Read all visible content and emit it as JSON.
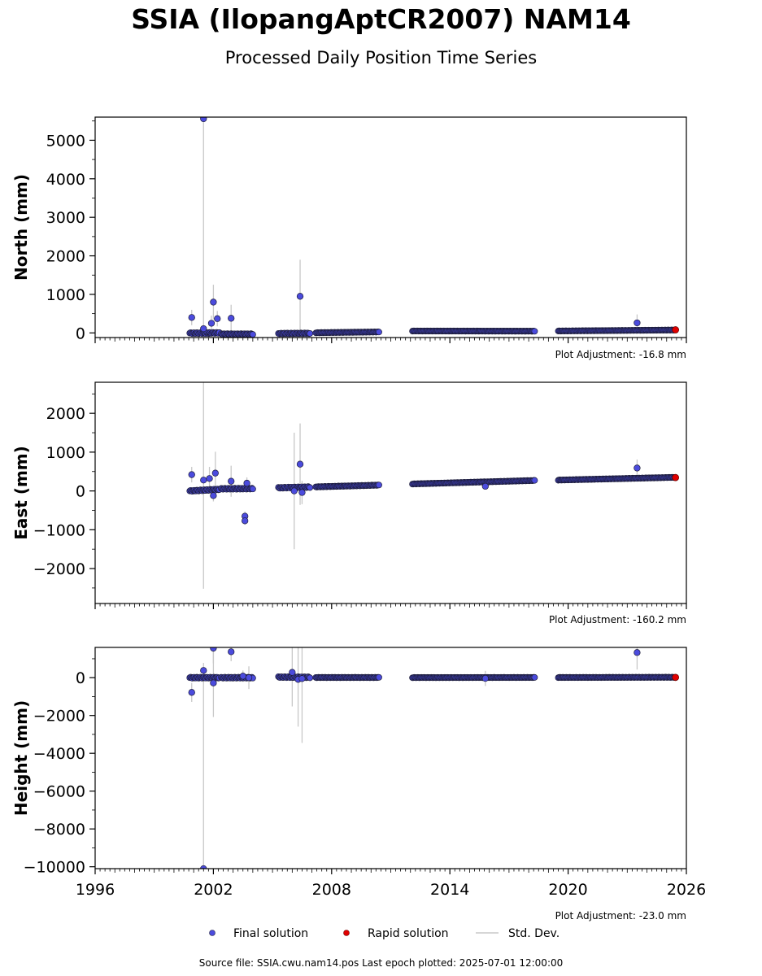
{
  "figure": {
    "title": "SSIA (IlopangAptCR2007) NAM14",
    "subtitle": "Processed Daily Position Time Series",
    "footer": "Source file: SSIA.cwu.nam14.pos  Last epoch plotted: 2025-07-01 12:00:00"
  },
  "legend": {
    "final_label": "Final solution",
    "rapid_label": "Rapid solution",
    "stddev_label": "Std. Dev."
  },
  "colors": {
    "final": "#4b4bdd",
    "final_edge": "#1e1e3c",
    "rapid": "#e00000",
    "stddev": "#c8c8c8"
  },
  "chart_data": [
    {
      "type": "scatter",
      "ylabel": "North (mm)",
      "xlim": [
        1996,
        2026
      ],
      "ylim": [
        -120,
        5600
      ],
      "yticks": [
        0,
        1000,
        2000,
        3000,
        4000,
        5000
      ],
      "xticks": [
        1996,
        2002,
        2008,
        2014,
        2020,
        2026
      ],
      "show_xtick_labels": false,
      "adjustment": "Plot Adjustment: -16.8 mm",
      "segments": [
        {
          "x0": 2000.8,
          "x1": 2001.8,
          "y0": -5,
          "y1": -5,
          "err": 40
        },
        {
          "x0": 2001.8,
          "x1": 2002.3,
          "y0": 0,
          "y1": 0,
          "err": 40
        },
        {
          "x0": 2002.4,
          "x1": 2004.0,
          "y0": -30,
          "y1": -30,
          "err": 30
        },
        {
          "x0": 2005.3,
          "x1": 2006.9,
          "y0": -15,
          "y1": -10,
          "err": 30
        },
        {
          "x0": 2007.2,
          "x1": 2010.4,
          "y0": 5,
          "y1": 25,
          "err": 15
        },
        {
          "x0": 2012.1,
          "x1": 2018.3,
          "y0": 50,
          "y1": 45,
          "err": 12
        },
        {
          "x0": 2019.5,
          "x1": 2025.4,
          "y0": 50,
          "y1": 75,
          "err": 12
        }
      ],
      "outliers": [
        {
          "x": 2000.9,
          "y": 400,
          "err": 200
        },
        {
          "x": 2001.5,
          "y": 5560,
          "err": 5560
        },
        {
          "x": 2001.5,
          "y": 110,
          "err": 100
        },
        {
          "x": 2001.9,
          "y": 250,
          "err": 200
        },
        {
          "x": 2002.0,
          "y": 800,
          "err": 450
        },
        {
          "x": 2002.2,
          "y": 370,
          "err": 200
        },
        {
          "x": 2002.9,
          "y": 380,
          "err": 350
        },
        {
          "x": 2006.4,
          "y": 950,
          "err": 950
        },
        {
          "x": 2023.5,
          "y": 260,
          "err": 220
        }
      ],
      "rapid": [
        {
          "x": 2025.45,
          "y": 80
        }
      ]
    },
    {
      "type": "scatter",
      "ylabel": "East (mm)",
      "xlim": [
        1996,
        2026
      ],
      "ylim": [
        -2900,
        2800
      ],
      "yticks": [
        -2000,
        -1000,
        0,
        1000,
        2000
      ],
      "xticks": [
        1996,
        2002,
        2008,
        2014,
        2020,
        2026
      ],
      "show_xtick_labels": false,
      "adjustment": "Plot Adjustment: -160.2 mm",
      "segments": [
        {
          "x0": 2000.8,
          "x1": 2002.3,
          "y0": 0,
          "y1": 40,
          "err": 40
        },
        {
          "x0": 2002.4,
          "x1": 2004.0,
          "y0": 55,
          "y1": 60,
          "err": 40
        },
        {
          "x0": 2005.3,
          "x1": 2006.9,
          "y0": 80,
          "y1": 100,
          "err": 40
        },
        {
          "x0": 2007.2,
          "x1": 2010.4,
          "y0": 105,
          "y1": 150,
          "err": 20
        },
        {
          "x0": 2012.1,
          "x1": 2018.3,
          "y0": 180,
          "y1": 270,
          "err": 15
        },
        {
          "x0": 2019.5,
          "x1": 2025.4,
          "y0": 280,
          "y1": 350,
          "err": 15
        }
      ],
      "outliers": [
        {
          "x": 2000.9,
          "y": 420,
          "err": 200
        },
        {
          "x": 2001.5,
          "y": 280,
          "err": 2800
        },
        {
          "x": 2001.8,
          "y": 320,
          "err": 300
        },
        {
          "x": 2002.1,
          "y": 460,
          "err": 550
        },
        {
          "x": 2002.0,
          "y": -120,
          "err": 150
        },
        {
          "x": 2002.9,
          "y": 250,
          "err": 400
        },
        {
          "x": 2003.6,
          "y": -650,
          "err": 120
        },
        {
          "x": 2003.6,
          "y": -770,
          "err": 100
        },
        {
          "x": 2003.7,
          "y": 200,
          "err": 150
        },
        {
          "x": 2006.4,
          "y": 690,
          "err": 1050
        },
        {
          "x": 2006.1,
          "y": 0,
          "err": 1500
        },
        {
          "x": 2006.5,
          "y": -40,
          "err": 300
        },
        {
          "x": 2015.8,
          "y": 120,
          "err": 80
        },
        {
          "x": 2023.5,
          "y": 590,
          "err": 220
        }
      ],
      "rapid": [
        {
          "x": 2025.45,
          "y": 345
        }
      ]
    },
    {
      "type": "scatter",
      "ylabel": "Height (mm)",
      "xlim": [
        1996,
        2026
      ],
      "ylim": [
        -10100,
        1600
      ],
      "yticks": [
        -10000,
        -8000,
        -6000,
        -4000,
        -2000,
        0
      ],
      "xticks": [
        1996,
        2002,
        2008,
        2014,
        2020,
        2026
      ],
      "show_xtick_labels": true,
      "adjustment": "Plot Adjustment: -23.0 mm",
      "segments": [
        {
          "x0": 2000.8,
          "x1": 2002.3,
          "y0": 0,
          "y1": 0,
          "err": 80
        },
        {
          "x0": 2002.4,
          "x1": 2004.0,
          "y0": 0,
          "y1": 0,
          "err": 80
        },
        {
          "x0": 2005.3,
          "x1": 2006.9,
          "y0": 30,
          "y1": 20,
          "err": 80
        },
        {
          "x0": 2007.2,
          "x1": 2010.4,
          "y0": 10,
          "y1": 10,
          "err": 40
        },
        {
          "x0": 2012.1,
          "x1": 2018.3,
          "y0": 5,
          "y1": 10,
          "err": 30
        },
        {
          "x0": 2019.5,
          "x1": 2025.4,
          "y0": 10,
          "y1": 20,
          "err": 30
        }
      ],
      "outliers": [
        {
          "x": 2000.9,
          "y": -780,
          "err": 500
        },
        {
          "x": 2001.5,
          "y": -10100,
          "err": 10100
        },
        {
          "x": 2001.5,
          "y": 380,
          "err": 400
        },
        {
          "x": 2002.0,
          "y": 1560,
          "err": 800
        },
        {
          "x": 2002.0,
          "y": -280,
          "err": 1800
        },
        {
          "x": 2002.9,
          "y": 1370,
          "err": 500
        },
        {
          "x": 2003.5,
          "y": 80,
          "err": 300
        },
        {
          "x": 2003.8,
          "y": 0,
          "err": 600
        },
        {
          "x": 2006.0,
          "y": 280,
          "err": 1800
        },
        {
          "x": 2006.3,
          "y": -90,
          "err": 2500
        },
        {
          "x": 2006.5,
          "y": -50,
          "err": 3400
        },
        {
          "x": 2015.8,
          "y": -40,
          "err": 400
        },
        {
          "x": 2023.5,
          "y": 1330,
          "err": 900
        }
      ],
      "rapid": [
        {
          "x": 2025.45,
          "y": 15
        }
      ]
    }
  ]
}
